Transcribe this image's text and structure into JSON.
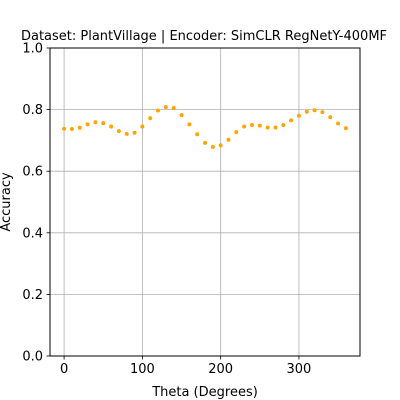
{
  "chart_data": {
    "type": "scatter",
    "title": "Dataset: PlantVillage | Encoder: SimCLR RegNetY-400MF",
    "xlabel": "Theta (Degrees)",
    "ylabel": "Accuracy",
    "xlim": [
      -18,
      378
    ],
    "ylim": [
      0.0,
      1.0
    ],
    "xticks": [
      0,
      100,
      200,
      300
    ],
    "yticks": [
      0.0,
      0.2,
      0.4,
      0.6,
      0.8,
      1.0
    ],
    "xtick_labels": [
      "0",
      "100",
      "200",
      "300"
    ],
    "ytick_labels": [
      "0.0",
      "0.2",
      "0.4",
      "0.6",
      "0.8",
      "1.0"
    ],
    "grid": true,
    "color": "#ffa500",
    "x": [
      0,
      10,
      20,
      30,
      40,
      50,
      60,
      70,
      80,
      90,
      100,
      110,
      120,
      130,
      140,
      150,
      160,
      170,
      180,
      190,
      200,
      210,
      220,
      230,
      240,
      250,
      260,
      270,
      280,
      290,
      300,
      310,
      320,
      330,
      340,
      350,
      360
    ],
    "y": [
      0.738,
      0.737,
      0.741,
      0.752,
      0.759,
      0.756,
      0.745,
      0.73,
      0.721,
      0.725,
      0.745,
      0.772,
      0.797,
      0.808,
      0.805,
      0.782,
      0.752,
      0.72,
      0.692,
      0.679,
      0.684,
      0.702,
      0.727,
      0.745,
      0.75,
      0.748,
      0.742,
      0.742,
      0.75,
      0.765,
      0.78,
      0.793,
      0.798,
      0.792,
      0.775,
      0.755,
      0.74
    ]
  }
}
